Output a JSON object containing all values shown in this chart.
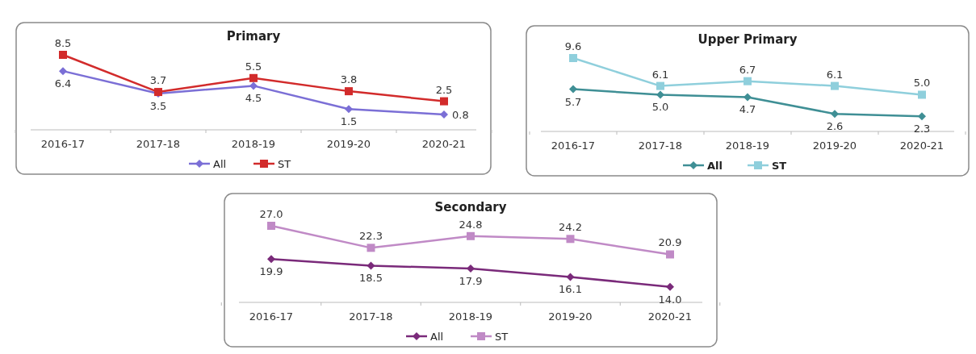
{
  "chart_data": [
    {
      "type": "line",
      "title": "Primary",
      "categories": [
        "2016-17",
        "2017-18",
        "2018-19",
        "2019-20",
        "2020-21"
      ],
      "series": [
        {
          "name": "All",
          "color": "#7b6fd6",
          "marker": "diamond",
          "values": [
            6.4,
            3.5,
            4.5,
            1.5,
            0.8
          ],
          "value_labels": [
            "6.4",
            "3.5",
            "4.5",
            "1.5",
            "0.8"
          ]
        },
        {
          "name": "ST",
          "color": "#d22b2b",
          "marker": "square",
          "values": [
            8.5,
            3.7,
            5.5,
            3.8,
            2.5
          ],
          "value_labels": [
            "8.5",
            "3.7",
            "5.5",
            "3.8",
            "2.5"
          ]
        }
      ],
      "legend": "bottom",
      "tick_labels": "x"
    },
    {
      "type": "line",
      "title": "Upper Primary",
      "categories": [
        "2016-17",
        "2017-18",
        "2018-19",
        "2019-20",
        "2020-21"
      ],
      "series": [
        {
          "name": "All",
          "color": "#3f8f95",
          "marker": "diamond",
          "values": [
            5.7,
            5.0,
            4.7,
            2.6,
            2.3
          ],
          "value_labels": [
            "5.7",
            "5.0",
            "4.7",
            "2.6",
            "2.3"
          ]
        },
        {
          "name": "ST",
          "color": "#8fcfdc",
          "marker": "square",
          "values": [
            9.6,
            6.1,
            6.7,
            6.1,
            5.0
          ],
          "value_labels": [
            "9.6",
            "6.1",
            "6.7",
            "6.1",
            "5.0"
          ]
        }
      ],
      "legend": "bottom",
      "tick_labels": "x"
    },
    {
      "type": "line",
      "title": "Secondary",
      "categories": [
        "2016-17",
        "2017-18",
        "2018-19",
        "2019-20",
        "2020-21"
      ],
      "series": [
        {
          "name": "All",
          "color": "#7a2a7a",
          "marker": "diamond",
          "values": [
            19.9,
            18.5,
            17.9,
            16.1,
            14.0
          ],
          "value_labels": [
            "19.9",
            "18.5",
            "17.9",
            "16.1",
            "14.0"
          ]
        },
        {
          "name": "ST",
          "color": "#c08ac6",
          "marker": "square",
          "values": [
            27.0,
            22.3,
            24.8,
            24.2,
            20.9
          ],
          "value_labels": [
            "27.0",
            "22.3",
            "24.8",
            "24.2",
            "20.9"
          ]
        }
      ],
      "legend": "bottom",
      "tick_labels": "x"
    }
  ]
}
